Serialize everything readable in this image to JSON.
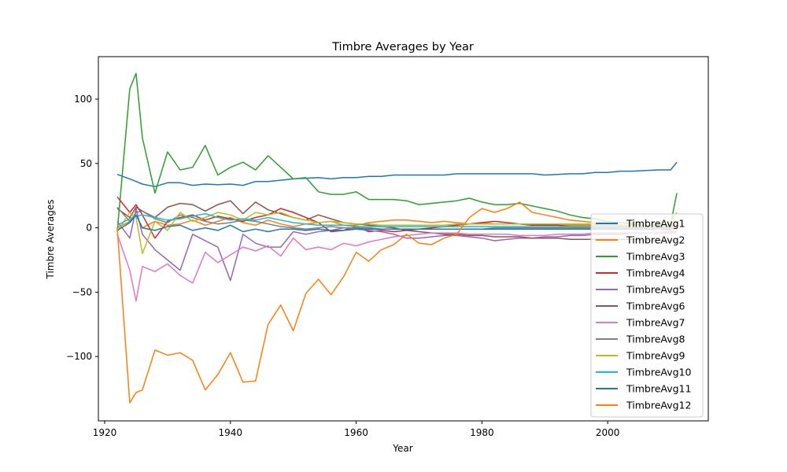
{
  "chart_data": {
    "type": "line",
    "title": "Timbre Averages by Year",
    "xlabel": "Year",
    "ylabel": "Timbre Averages",
    "xlim": [
      1919,
      2016
    ],
    "ylim": [
      -150,
      133
    ],
    "xticks": [
      1920,
      1940,
      1960,
      1980,
      2000
    ],
    "yticks": [
      -100,
      -50,
      0,
      50,
      100
    ],
    "grid": false,
    "legend_position": "lower-right",
    "x": [
      1922,
      1924,
      1925,
      1926,
      1928,
      1930,
      1932,
      1934,
      1936,
      1938,
      1940,
      1942,
      1944,
      1946,
      1948,
      1950,
      1952,
      1954,
      1956,
      1958,
      1960,
      1962,
      1964,
      1966,
      1968,
      1970,
      1972,
      1974,
      1976,
      1978,
      1980,
      1982,
      1984,
      1986,
      1988,
      1990,
      1992,
      1994,
      1996,
      1998,
      2000,
      2002,
      2004,
      2006,
      2008,
      2010,
      2011
    ],
    "series": [
      {
        "name": "TimbreAvg1",
        "color": "#1f77b4",
        "values": [
          41.5,
          38,
          36,
          34,
          32,
          35,
          35,
          33,
          34,
          33.5,
          34,
          33,
          36,
          36,
          37,
          38,
          38.5,
          39,
          38,
          39,
          39,
          40,
          40,
          41,
          41,
          41,
          41,
          41,
          42,
          42,
          42,
          42,
          42,
          42,
          42,
          41,
          41.5,
          42,
          42,
          43,
          43,
          44,
          44,
          44.5,
          45,
          45,
          51
        ]
      },
      {
        "name": "TimbreAvg2",
        "color": "#ff7f0e",
        "values": [
          0,
          5,
          10,
          0,
          5,
          2,
          3,
          6,
          2,
          5,
          8,
          4,
          2,
          6,
          3,
          1,
          3,
          4,
          5,
          2,
          2,
          4,
          5,
          6,
          6,
          5,
          4,
          5,
          4,
          3,
          4,
          3,
          3,
          3,
          2,
          2,
          2,
          2,
          2,
          2,
          2,
          2,
          2,
          2,
          2,
          2,
          2
        ]
      },
      {
        "name": "TimbreAvg3",
        "color": "#2ca02c",
        "values": [
          -3,
          108,
          120,
          70,
          27,
          59,
          45,
          47,
          64,
          41,
          47,
          51,
          45,
          56,
          47,
          38,
          39,
          28,
          26,
          26,
          28,
          22,
          22,
          22,
          21,
          18,
          19,
          20,
          21,
          23,
          20,
          18,
          18,
          19,
          17,
          15,
          13,
          10,
          8,
          7,
          5,
          4,
          3,
          2,
          2,
          3,
          27
        ]
      },
      {
        "name": "TimbreAvg4",
        "color": "#d62728",
        "values": [
          24,
          12,
          18,
          10,
          -8,
          5,
          8,
          10,
          6,
          9,
          7,
          5,
          8,
          10,
          15,
          12,
          8,
          4,
          -3,
          -2,
          1,
          -3,
          -2,
          -3,
          -2,
          -1,
          0,
          1,
          2,
          3,
          4,
          5,
          4,
          3,
          2,
          2,
          2,
          1,
          1,
          1,
          1,
          1,
          1,
          1,
          1,
          1,
          1
        ]
      },
      {
        "name": "TimbreAvg5",
        "color": "#9467bd",
        "values": [
          5,
          -8,
          15,
          -5,
          -17,
          -25,
          -33,
          -5,
          -10,
          -15,
          -41,
          -5,
          -12,
          -15,
          -15,
          -3,
          -5,
          -3,
          -2,
          0,
          -1,
          -2,
          -3,
          -5,
          -8,
          -8,
          -7,
          -6,
          -6,
          -7,
          -8,
          -10,
          -9,
          -8,
          -8,
          -7,
          -7,
          -6,
          -6,
          -5,
          -5,
          -5,
          -4,
          -4,
          -4,
          -3,
          -3
        ]
      },
      {
        "name": "TimbreAvg6",
        "color": "#8c564b",
        "values": [
          15,
          8,
          16,
          13,
          8,
          16,
          19,
          18,
          13,
          18,
          21,
          11,
          20,
          14,
          11,
          8,
          6,
          10,
          7,
          4,
          3,
          2,
          1,
          0,
          -2,
          -3,
          -4,
          -5,
          -5,
          -6,
          -6,
          -7,
          -7,
          -7,
          -8,
          -8,
          -8,
          -9,
          -9,
          -9,
          -9,
          -9,
          -9,
          -10,
          -10,
          -10,
          -10
        ]
      },
      {
        "name": "TimbreAvg7",
        "color": "#e377c2",
        "values": [
          -5,
          -33,
          -57,
          -30,
          -34,
          -28,
          -37,
          -43,
          -19,
          -27,
          -21,
          -15,
          -18,
          -14,
          -22,
          -8,
          -17,
          -15,
          -17,
          -12,
          -14,
          -11,
          -9,
          -7,
          -6,
          -5,
          -4,
          -4,
          -4,
          -5,
          -5,
          -5,
          -5,
          -6,
          -6,
          -6,
          -5,
          -5,
          -5,
          -4,
          -4,
          -4,
          -4,
          -4,
          -4,
          -4,
          -4
        ]
      },
      {
        "name": "TimbreAvg8",
        "color": "#7f7f7f",
        "values": [
          16,
          5,
          12,
          13,
          7,
          4,
          10,
          8,
          5,
          3,
          4,
          6,
          5,
          3,
          1,
          0,
          -1,
          0,
          1,
          0,
          0,
          0,
          -1,
          -1,
          -1,
          -1,
          -1,
          -1,
          -1,
          -1,
          -1,
          0,
          0,
          0,
          0,
          0,
          0,
          0,
          0,
          0,
          0,
          0,
          0,
          0,
          0,
          0,
          0
        ]
      },
      {
        "name": "TimbreAvg9",
        "color": "#bcbd22",
        "values": [
          -3,
          12,
          8,
          -20,
          5,
          -2,
          12,
          5,
          8,
          12,
          10,
          6,
          12,
          10,
          12,
          8,
          6,
          4,
          5,
          4,
          3,
          3,
          2,
          2,
          2,
          2,
          2,
          2,
          3,
          3,
          3,
          3,
          3,
          3,
          3,
          3,
          3,
          3,
          3,
          3,
          3,
          4,
          4,
          4,
          4,
          5,
          12
        ]
      },
      {
        "name": "TimbreAvg10",
        "color": "#17becf",
        "values": [
          2,
          7,
          9,
          10,
          8,
          6,
          7,
          9,
          11,
          8,
          6,
          7,
          6,
          8,
          6,
          4,
          3,
          2,
          2,
          2,
          1,
          1,
          1,
          1,
          1,
          1,
          1,
          1,
          1,
          1,
          1,
          1,
          1,
          1,
          1,
          1,
          1,
          1,
          1,
          1,
          1,
          1,
          1,
          1,
          1,
          1,
          1
        ]
      },
      {
        "name": "TimbreAvg11",
        "color": "#1f77b4",
        "values": [
          -2,
          4,
          10,
          0,
          -2,
          1,
          2,
          -2,
          0,
          -2,
          2,
          -3,
          -1,
          -3,
          -1,
          -1,
          -2,
          -1,
          -2,
          -2,
          -1,
          -1,
          -1,
          -1,
          -1,
          -1,
          -1,
          -1,
          -1,
          -1,
          -1,
          -1,
          -1,
          -1,
          -1,
          -1,
          -1,
          -1,
          -1,
          -1,
          -1,
          -1,
          -1,
          -1,
          -1,
          -1,
          -1
        ]
      },
      {
        "name": "TimbreAvg12",
        "color": "#ff7f0e",
        "values": [
          0,
          -136,
          -128,
          -126,
          -95,
          -99,
          -97,
          -103,
          -126,
          -114,
          -97,
          -120,
          -119,
          -75,
          -60,
          -80,
          -51,
          -40,
          -52,
          -38,
          -19,
          -26,
          -17,
          -13,
          -5,
          -12,
          -13,
          -8,
          -5,
          8,
          15,
          12,
          15,
          20,
          12,
          10,
          8,
          6,
          5,
          4,
          3,
          2,
          1,
          0,
          -1,
          -2,
          5
        ]
      }
    ]
  }
}
